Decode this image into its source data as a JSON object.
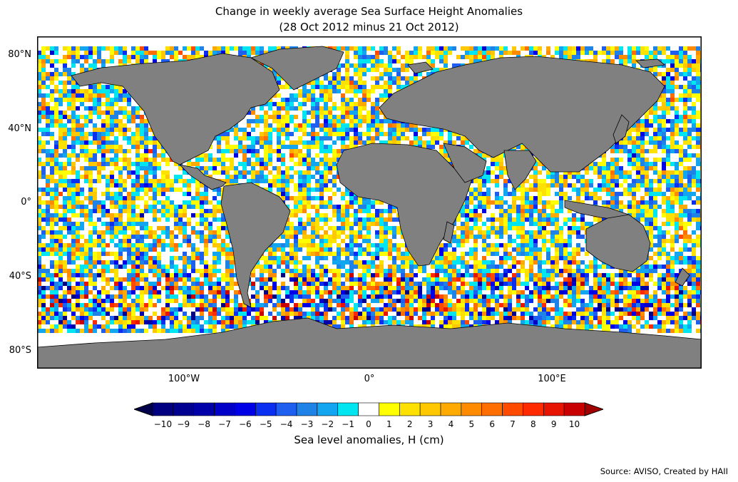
{
  "title": {
    "line1": "Change in weekly average Sea Surface Height Anomalies",
    "line2": "(28 Oct 2012 minus 21 Oct 2012)"
  },
  "map": {
    "lat_ticks": [
      "80°N",
      "40°N",
      "0°",
      "40°S",
      "80°S"
    ],
    "lon_ticks": [
      "100°W",
      "0°",
      "100°E"
    ],
    "land_color": "#808080",
    "frame_color": "#000000"
  },
  "colorbar": {
    "label": "Sea level anomalies, H (cm)",
    "ticks": [
      "−10",
      "−9",
      "−8",
      "−7",
      "−6",
      "−5",
      "−4",
      "−3",
      "−2",
      "−1",
      "0",
      "1",
      "2",
      "3",
      "4",
      "5",
      "6",
      "7",
      "8",
      "9",
      "10"
    ],
    "colors": [
      "#000080",
      "#000090",
      "#0000a8",
      "#0000c8",
      "#0000e6",
      "#0a2ff0",
      "#1e5ff0",
      "#1e82e6",
      "#12a5f0",
      "#00e6f0",
      "#ffffff",
      "#ffff00",
      "#ffe100",
      "#ffc800",
      "#ffaa00",
      "#ff8c00",
      "#ff6e00",
      "#ff4b00",
      "#ff2a00",
      "#e61400",
      "#c80000"
    ],
    "under_color": "#00004c",
    "over_color": "#a00000"
  },
  "source": "Source: AVISO, Created by HAII"
}
